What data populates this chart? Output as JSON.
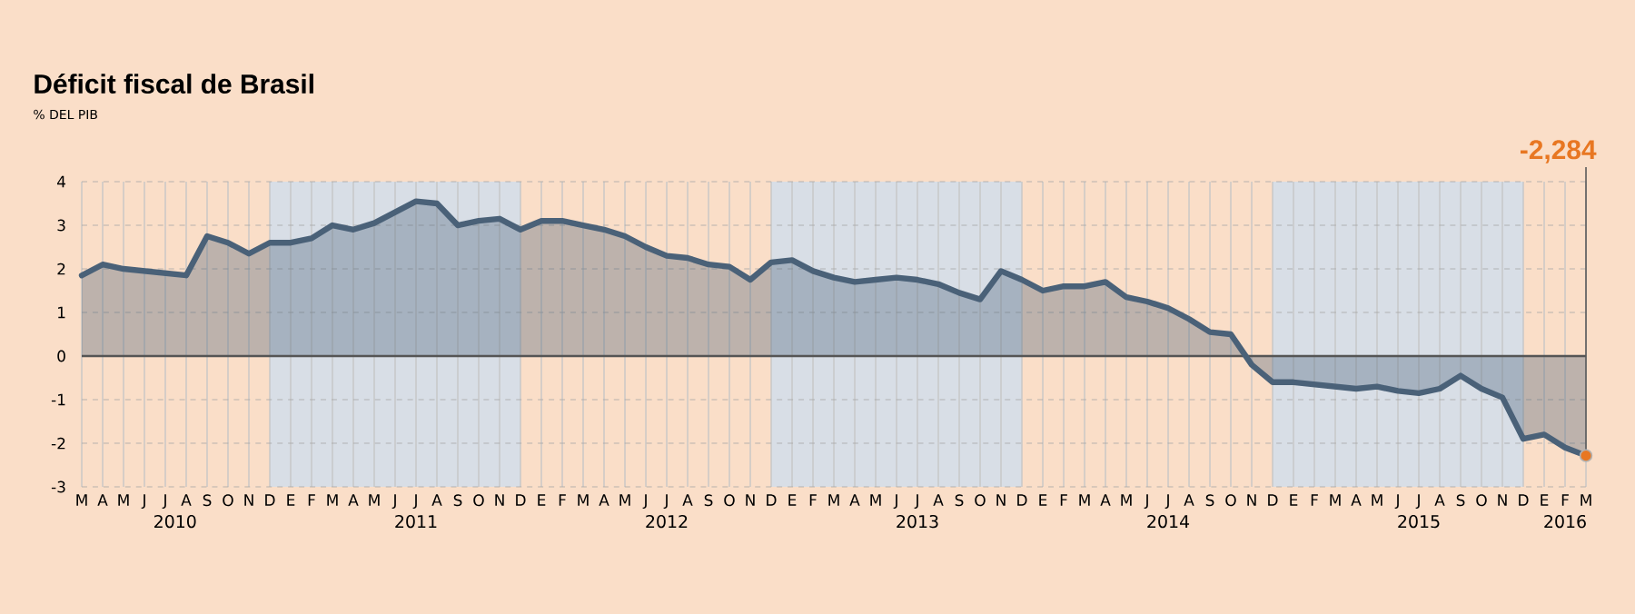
{
  "chart_data": {
    "type": "area",
    "title": "Déficit fiscal de Brasil",
    "subtitle": "% DEL PIB",
    "x": [
      "2010-03",
      "2010-04",
      "2010-05",
      "2010-06",
      "2010-07",
      "2010-08",
      "2010-09",
      "2010-10",
      "2010-11",
      "2010-12",
      "2011-01",
      "2011-02",
      "2011-03",
      "2011-04",
      "2011-05",
      "2011-06",
      "2011-07",
      "2011-08",
      "2011-09",
      "2011-10",
      "2011-11",
      "2011-12",
      "2012-01",
      "2012-02",
      "2012-03",
      "2012-04",
      "2012-05",
      "2012-06",
      "2012-07",
      "2012-08",
      "2012-09",
      "2012-10",
      "2012-11",
      "2012-12",
      "2013-01",
      "2013-02",
      "2013-03",
      "2013-04",
      "2013-05",
      "2013-06",
      "2013-07",
      "2013-08",
      "2013-09",
      "2013-10",
      "2013-11",
      "2013-12",
      "2014-01",
      "2014-02",
      "2014-03",
      "2014-04",
      "2014-05",
      "2014-06",
      "2014-07",
      "2014-08",
      "2014-09",
      "2014-10",
      "2014-11",
      "2014-12",
      "2015-01",
      "2015-02",
      "2015-03",
      "2015-04",
      "2015-05",
      "2015-06",
      "2015-07",
      "2015-08",
      "2015-09",
      "2015-10",
      "2015-11",
      "2015-12",
      "2016-01",
      "2016-02",
      "2016-03"
    ],
    "values": [
      1.85,
      2.1,
      2.0,
      1.95,
      1.9,
      1.85,
      2.75,
      2.6,
      2.35,
      2.6,
      2.6,
      2.7,
      3.0,
      2.9,
      3.05,
      3.3,
      3.55,
      3.5,
      3.0,
      3.1,
      3.15,
      2.9,
      3.1,
      3.1,
      3.0,
      2.9,
      2.75,
      2.5,
      2.3,
      2.25,
      2.1,
      2.05,
      1.75,
      2.15,
      2.2,
      1.95,
      1.8,
      1.7,
      1.75,
      1.8,
      1.75,
      1.65,
      1.45,
      1.3,
      1.95,
      1.75,
      1.5,
      1.6,
      1.6,
      1.7,
      1.35,
      1.25,
      1.1,
      0.85,
      0.55,
      0.5,
      -0.2,
      -0.6,
      -0.6,
      -0.65,
      -0.7,
      -0.75,
      -0.7,
      -0.8,
      -0.85,
      -0.75,
      -0.45,
      -0.75,
      -0.95,
      -1.9,
      -1.8,
      -2.1,
      -2.284
    ],
    "color": "#4a6178",
    "xlim": [
      "2010-03",
      "2016-03"
    ],
    "xticks": [
      {
        "value": "2010-07-15",
        "label": "2010"
      },
      {
        "value": "2011-07-01",
        "label": "2011"
      },
      {
        "value": "2012-07-01",
        "label": "2012"
      },
      {
        "value": "2013-07-01",
        "label": "2013"
      },
      {
        "value": "2014-07-01",
        "label": "2014"
      },
      {
        "value": "2015-07-01",
        "label": "2015"
      },
      {
        "value": "2016-02-01",
        "label": "2016"
      }
    ],
    "ylim": [
      -3,
      4
    ],
    "yticks": [
      -3,
      -2,
      -1,
      0,
      1,
      2,
      3,
      4
    ],
    "grid": true,
    "bands": [
      {
        "axis": "x",
        "from": "2010-12",
        "to": "2011-12",
        "color": "#d8dee6"
      },
      {
        "axis": "x",
        "from": "2012-12",
        "to": "2013-12",
        "color": "#d8dee6"
      },
      {
        "axis": "x",
        "from": "2014-12",
        "to": "2015-12",
        "color": "#d8dee6"
      }
    ],
    "ref_lines": [
      {
        "axis": "y",
        "value": 0,
        "color": "#555555"
      }
    ],
    "annotations": [
      "M",
      "A",
      "M",
      "J",
      "J",
      "A",
      "S",
      "O",
      "N",
      "D",
      "E",
      "F",
      "M",
      "A",
      "M",
      "J",
      "J",
      "A",
      "S",
      "O",
      "N",
      "D",
      "E",
      "F",
      "M",
      "A",
      "M",
      "J",
      "J",
      "A",
      "S",
      "O",
      "N",
      "D",
      "E",
      "F",
      "M",
      "A",
      "M",
      "J",
      "J",
      "A",
      "S",
      "O",
      "N",
      "D",
      "E",
      "F",
      "M",
      "A",
      "M",
      "J",
      "J",
      "A",
      "S",
      "O",
      "N",
      "D",
      "E",
      "F",
      "M",
      "A",
      "M",
      "J",
      "J",
      "A",
      "S",
      "O",
      "N",
      "D",
      "E",
      "F",
      "M",
      "-2,284"
    ]
  }
}
